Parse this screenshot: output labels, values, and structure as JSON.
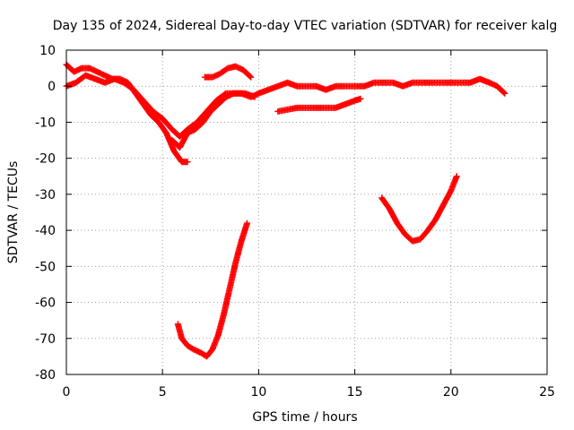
{
  "chart_data": {
    "type": "scatter",
    "title": "Day 135 of 2024, Sidereal Day-to-day VTEC variation (SDTVAR) for receiver kalg",
    "xlabel": "GPS time / hours",
    "ylabel": "SDTVAR / TECUs",
    "xlim": [
      0,
      25
    ],
    "ylim": [
      -80,
      10
    ],
    "xticks": [
      0,
      5,
      10,
      15,
      20,
      25
    ],
    "yticks": [
      10,
      0,
      -10,
      -20,
      -30,
      -40,
      -50,
      -60,
      -70,
      -80
    ],
    "grid": true,
    "marker": "plus",
    "color": "#ff0000",
    "series": [
      {
        "name": "track-1",
        "x": [
          0.0,
          0.4,
          0.8,
          1.2,
          1.6,
          2.0,
          2.4,
          2.8,
          3.2,
          3.6,
          4.0,
          4.4,
          4.8,
          5.2,
          5.6,
          6.0,
          6.3
        ],
        "y": [
          6,
          4,
          5,
          5,
          4,
          3,
          2,
          2,
          1,
          -2,
          -5,
          -8,
          -10,
          -13,
          -18,
          -21,
          -21
        ]
      },
      {
        "name": "track-2",
        "x": [
          0.0,
          0.5,
          1.0,
          1.5,
          2.0,
          2.5,
          3.0,
          3.5,
          4.0,
          4.5,
          5.0,
          5.5,
          5.9,
          6.3,
          6.8,
          7.3,
          7.8,
          8.3,
          8.8,
          9.3,
          9.8
        ],
        "y": [
          0,
          1,
          3,
          2,
          1,
          2,
          1,
          -1,
          -4,
          -7,
          -9,
          -12,
          -14,
          -12,
          -10,
          -7,
          -4,
          -2,
          -2,
          -2,
          -3
        ]
      },
      {
        "name": "track-3",
        "x": [
          5.5,
          5.9,
          6.3,
          6.7,
          7.1,
          7.5,
          7.9,
          8.3,
          8.7,
          9.1,
          9.6,
          10.0,
          10.5,
          11.0,
          11.5,
          12.0,
          12.5,
          13.0,
          13.5,
          14.0,
          14.5,
          15.0,
          15.5,
          16.0,
          16.5,
          17.0,
          17.5,
          18.0,
          18.5,
          19.0,
          19.5,
          20.0,
          20.5,
          21.0,
          21.5,
          22.0,
          22.4,
          22.8
        ],
        "y": [
          -15,
          -17,
          -13,
          -12,
          -10,
          -7,
          -5,
          -3,
          -2,
          -2,
          -3,
          -2,
          -1,
          0,
          1,
          0,
          0,
          0,
          -1,
          0,
          0,
          0,
          0,
          1,
          1,
          1,
          0,
          1,
          1,
          1,
          1,
          1,
          1,
          1,
          2,
          1,
          0,
          -2
        ]
      },
      {
        "name": "track-4",
        "x": [
          7.2,
          7.6,
          8.0,
          8.4,
          8.8,
          9.2,
          9.6
        ],
        "y": [
          2.5,
          2.5,
          3.5,
          5,
          5.5,
          4.5,
          2.5
        ]
      },
      {
        "name": "track-5",
        "x": [
          11.0,
          11.5,
          12.0,
          12.5,
          13.0,
          13.5,
          14.0,
          14.5,
          15.0,
          15.3
        ],
        "y": [
          -7,
          -6.5,
          -6,
          -6,
          -6,
          -6,
          -6,
          -5,
          -4,
          -3.5
        ]
      },
      {
        "name": "track-6",
        "x": [
          5.8,
          6.0,
          6.3,
          6.6,
          7.0,
          7.3,
          7.6,
          7.9,
          8.2,
          8.5,
          8.8,
          9.1,
          9.4
        ],
        "y": [
          -66,
          -70,
          -72,
          -73,
          -74,
          -75,
          -73,
          -69,
          -63,
          -56,
          -49,
          -43,
          -38
        ]
      },
      {
        "name": "track-7",
        "x": [
          16.4,
          16.8,
          17.2,
          17.6,
          18.0,
          18.4,
          18.8,
          19.2,
          19.6,
          20.0,
          20.3
        ],
        "y": [
          -31,
          -34,
          -38,
          -41,
          -43,
          -42.5,
          -40,
          -37,
          -33,
          -29,
          -25
        ]
      }
    ]
  }
}
